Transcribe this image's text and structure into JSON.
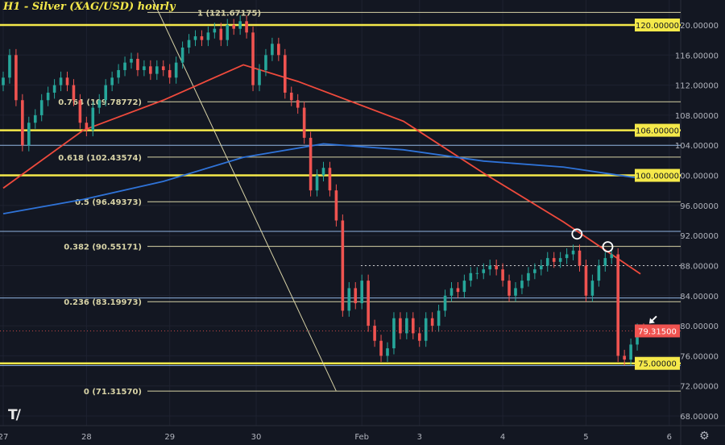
{
  "title": "H1 - Silver (XAG/USD) hourly",
  "colors": {
    "background": "#131722",
    "up": "#26a69a",
    "down": "#ef5350",
    "key_level": "#f5e94a",
    "fib": "#d8d3a6",
    "support_blue": "#8fb3e0",
    "ma_red": "#ef4a3c",
    "ma_blue": "#2f73d8",
    "last_price_bg": "#ef5350",
    "key_label_bg": "#f5e94a"
  },
  "chart_data": {
    "type": "candlestick",
    "title": "H1 - Silver (XAG/USD) hourly",
    "ylim": [
      66,
      124
    ],
    "y_ticks": [
      "120.00000",
      "116.00000",
      "112.00000",
      "108.00000",
      "104.00000",
      "100.00000",
      "96.00000",
      "92.00000",
      "88.00000",
      "84.00000",
      "80.00000",
      "76.00000",
      "72.00000",
      "68.00000"
    ],
    "x_ticks": [
      {
        "label": "27",
        "bar": 0
      },
      {
        "label": "28",
        "bar": 13
      },
      {
        "label": "29",
        "bar": 26
      },
      {
        "label": "30",
        "bar": 39.5
      },
      {
        "label": "Feb",
        "bar": 56
      },
      {
        "label": "3",
        "bar": 65
      },
      {
        "label": "4",
        "bar": 78
      },
      {
        "label": "5",
        "bar": 91
      },
      {
        "label": "6",
        "bar": 104
      }
    ],
    "closes": [
      113,
      116,
      110,
      104,
      107,
      108,
      110,
      111,
      112,
      113,
      112,
      110,
      107,
      106,
      109,
      110,
      112,
      113,
      114,
      115,
      115.5,
      114,
      114.5,
      113.5,
      114.5,
      114,
      113,
      115,
      117,
      118,
      118.5,
      118,
      119,
      119.5,
      118,
      120,
      119.5,
      120.5,
      119,
      112,
      114,
      116,
      117.5,
      116,
      111,
      110,
      109,
      105,
      98,
      100,
      101,
      98,
      94,
      82,
      85,
      83,
      86,
      80,
      78,
      76,
      77,
      81,
      79,
      81,
      79,
      78,
      81,
      80,
      82,
      84,
      85,
      84.5,
      86,
      87,
      87,
      87.5,
      88,
      87.5,
      86,
      84,
      85,
      86,
      87,
      87.5,
      88,
      89,
      88.5,
      89,
      89.5,
      90,
      88,
      84,
      86,
      88,
      89,
      89.5,
      76,
      75.5,
      77.5,
      79.5,
      79.315
    ],
    "last_price": "79.31500",
    "moving_averages": [
      {
        "color": "#ef4a3c",
        "points": [
          [
            0,
            98.3
          ],
          [
            12.5,
            106
          ],
          [
            25,
            110
          ],
          [
            37.5,
            114.7
          ],
          [
            46,
            112.5
          ],
          [
            62.5,
            107.2
          ],
          [
            75,
            100.3
          ],
          [
            87.5,
            93.8
          ],
          [
            99.5,
            86.9
          ]
        ]
      },
      {
        "color": "#2f73d8",
        "points": [
          [
            0,
            94.9
          ],
          [
            12.5,
            96.8
          ],
          [
            25,
            99.2
          ],
          [
            37.5,
            102.4
          ],
          [
            50,
            104.2
          ],
          [
            62.5,
            103.4
          ],
          [
            75,
            101.9
          ],
          [
            87.5,
            101.1
          ],
          [
            99.5,
            99.6
          ]
        ]
      }
    ],
    "key_levels": [
      {
        "price": 120,
        "label": "120.00000"
      },
      {
        "price": 106,
        "label": "106.00000"
      },
      {
        "price": 100,
        "label": "100.00000"
      },
      {
        "price": 75,
        "label": "75.00000"
      }
    ],
    "blue_levels": [
      104.0,
      92.55,
      83.7,
      74.7
    ],
    "fib_levels": [
      {
        "price": 121.67175,
        "label": "1 (121.67175)"
      },
      {
        "price": 109.78772,
        "label": "0.764 (109.78772)"
      },
      {
        "price": 102.43574,
        "label": "0.618 (102.43574)"
      },
      {
        "price": 96.49373,
        "label": "0.5 (96.49373)"
      },
      {
        "price": 90.55171,
        "label": "0.382 (90.55171)"
      },
      {
        "price": 83.19973,
        "label": "0.236 (83.19973)"
      },
      {
        "price": 71.3157,
        "label": "0 (71.31570)"
      }
    ],
    "dotted_level": 88.0,
    "trendline": [
      [
        23,
        124
      ],
      [
        52,
        71.3
      ]
    ],
    "highlight_circles": [
      [
        89.6,
        92.2
      ],
      [
        94.4,
        90.5
      ]
    ],
    "arrow_at": [
      101,
      80.4
    ]
  }
}
